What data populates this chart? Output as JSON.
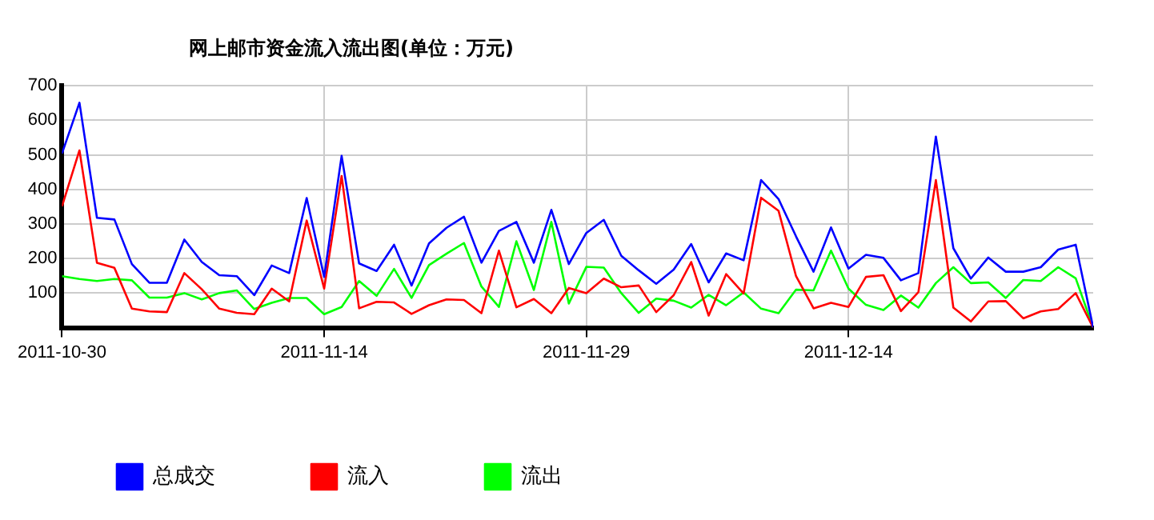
{
  "chart_data": {
    "type": "line",
    "title": "网上邮市资金流入流出图(单位：万元)",
    "x": [
      "2011-10-30",
      "2011-10-31",
      "2011-11-01",
      "2011-11-02",
      "2011-11-03",
      "2011-11-04",
      "2011-11-05",
      "2011-11-06",
      "2011-11-07",
      "2011-11-08",
      "2011-11-09",
      "2011-11-10",
      "2011-11-11",
      "2011-11-12",
      "2011-11-13",
      "2011-11-14",
      "2011-11-15",
      "2011-11-16",
      "2011-11-17",
      "2011-11-18",
      "2011-11-19",
      "2011-11-20",
      "2011-11-21",
      "2011-11-22",
      "2011-11-23",
      "2011-11-24",
      "2011-11-25",
      "2011-11-26",
      "2011-11-27",
      "2011-11-28",
      "2011-11-29",
      "2011-11-30",
      "2011-12-01",
      "2011-12-02",
      "2011-12-03",
      "2011-12-04",
      "2011-12-05",
      "2011-12-06",
      "2011-12-07",
      "2011-12-08",
      "2011-12-09",
      "2011-12-10",
      "2011-12-11",
      "2011-12-12",
      "2011-12-13",
      "2011-12-14",
      "2011-12-15",
      "2011-12-16",
      "2011-12-17",
      "2011-12-18",
      "2011-12-19",
      "2011-12-20",
      "2011-12-21",
      "2011-12-22",
      "2011-12-23",
      "2011-12-24",
      "2011-12-25",
      "2011-12-26",
      "2011-12-27",
      "2011-12-28"
    ],
    "series": [
      {
        "name": "总成交",
        "color": "#0000ff",
        "values": [
          504,
          651,
          318,
          313,
          184,
          130,
          130,
          255,
          190,
          152,
          149,
          94,
          180,
          158,
          375,
          147,
          497,
          186,
          164,
          240,
          122,
          244,
          289,
          321,
          188,
          280,
          306,
          188,
          341,
          184,
          274,
          312,
          208,
          166,
          127,
          168,
          242,
          131,
          215,
          195,
          427,
          372,
          264,
          162,
          290,
          171,
          211,
          202,
          137,
          158,
          553,
          230,
          142,
          203,
          162,
          162,
          175,
          226,
          240,
          0
        ]
      },
      {
        "name": "流入",
        "color": "#ff0000",
        "values": [
          351,
          513,
          188,
          173,
          55,
          47,
          45,
          158,
          111,
          55,
          43,
          39,
          113,
          76,
          310,
          113,
          439,
          56,
          75,
          73,
          40,
          65,
          82,
          80,
          42,
          223,
          59,
          83,
          42,
          115,
          100,
          142,
          117,
          122,
          45,
          94,
          190,
          35,
          155,
          99,
          376,
          338,
          149,
          56,
          72,
          60,
          147,
          152,
          48,
          103,
          427,
          58,
          18,
          76,
          77,
          27,
          47,
          54,
          100,
          0
        ]
      },
      {
        "name": "流出",
        "color": "#00ff00",
        "values": [
          149,
          141,
          135,
          141,
          137,
          87,
          87,
          100,
          82,
          100,
          108,
          54,
          72,
          86,
          86,
          39,
          60,
          135,
          92,
          170,
          86,
          181,
          214,
          245,
          119,
          60,
          250,
          109,
          306,
          70,
          176,
          174,
          100,
          43,
          84,
          78,
          58,
          95,
          65,
          102,
          55,
          42,
          110,
          108,
          223,
          113,
          66,
          51,
          93,
          58,
          129,
          175,
          129,
          131,
          86,
          138,
          135,
          175,
          143,
          0
        ]
      }
    ],
    "xlim": [
      "2011-10-30",
      "2011-12-28"
    ],
    "xticks": [
      "2011-10-30",
      "2011-11-14",
      "2011-11-29",
      "2011-12-14"
    ],
    "ylim": [
      0,
      700
    ],
    "yticks": [
      100,
      200,
      300,
      400,
      500,
      600,
      700
    ],
    "grid": true,
    "legend": "bottom",
    "marker": "none",
    "line_style": "solid"
  }
}
